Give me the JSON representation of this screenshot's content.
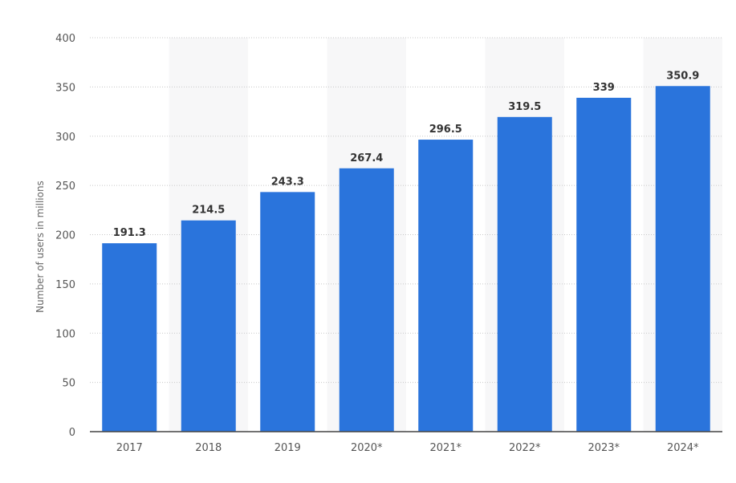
{
  "chart_data": {
    "type": "bar",
    "categories": [
      "2017",
      "2018",
      "2019",
      "2020*",
      "2021*",
      "2022*",
      "2023*",
      "2024*"
    ],
    "values": [
      191.3,
      214.5,
      243.3,
      267.4,
      296.5,
      319.5,
      339,
      350.9
    ],
    "value_labels": [
      "191.3",
      "214.5",
      "243.3",
      "267.4",
      "296.5",
      "319.5",
      "339",
      "350.9"
    ],
    "ylabel": "Number of users in millions",
    "ylim": [
      0,
      400
    ],
    "yticks": [
      0,
      50,
      100,
      150,
      200,
      250,
      300,
      350,
      400
    ],
    "ytick_labels": [
      "0",
      "50",
      "100",
      "150",
      "200",
      "250",
      "300",
      "350",
      "400"
    ],
    "grid": true,
    "legend": false,
    "colors": {
      "bar": "#2a74dc",
      "band": "#f7f7f8",
      "grid": "#c8c8c8",
      "axis": "#444444"
    }
  }
}
